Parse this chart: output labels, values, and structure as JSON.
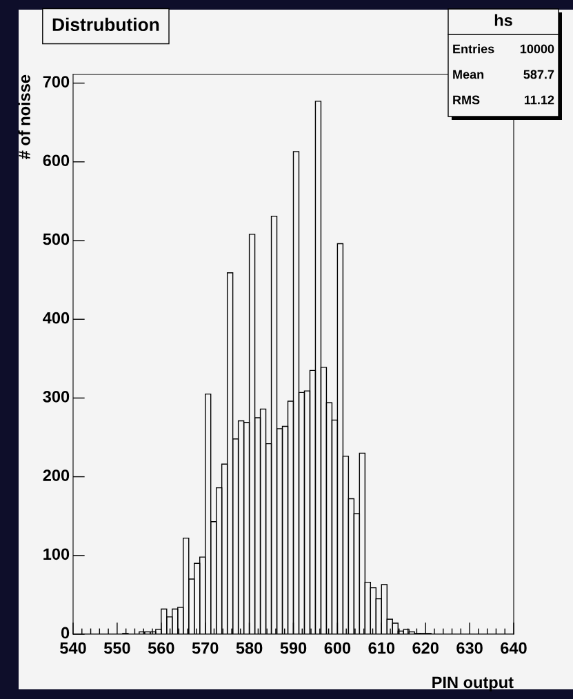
{
  "chart_data": {
    "type": "histogram",
    "title": "Distrubution",
    "xlabel": "PIN output",
    "ylabel": "# of noisse",
    "bins": [
      540,
      541.25,
      542.5,
      543.75,
      545,
      546.25,
      547.5,
      548.75,
      550,
      551.25,
      552.5,
      553.75,
      555,
      556.25,
      557.5,
      558.75,
      560,
      561.25,
      562.5,
      563.75,
      565,
      566.25,
      567.5,
      568.75,
      570,
      571.25,
      572.5,
      573.75,
      575,
      576.25,
      577.5,
      578.75,
      580,
      581.25,
      582.5,
      583.75,
      585,
      586.25,
      587.5,
      588.75,
      590,
      591.25,
      592.5,
      593.75,
      595,
      596.25,
      597.5,
      598.75,
      600,
      601.25,
      602.5,
      603.75,
      605,
      606.25,
      607.5,
      608.75,
      610,
      611.25,
      612.5,
      613.75,
      615,
      616.25,
      617.5,
      618.75,
      620,
      621.25,
      622.5,
      623.75,
      625,
      626.25,
      627.5,
      628.75,
      630,
      631.25,
      632.5,
      633.75,
      635,
      636.25,
      637.5,
      638.75,
      640
    ],
    "values": [
      0,
      0,
      0,
      0,
      0,
      0,
      0,
      0,
      0,
      1,
      0,
      0,
      3,
      3,
      3,
      6,
      32,
      22,
      32,
      34,
      122,
      70,
      90,
      98,
      305,
      143,
      186,
      216,
      459,
      248,
      271,
      269,
      508,
      275,
      286,
      242,
      531,
      261,
      264,
      296,
      613,
      307,
      309,
      335,
      677,
      339,
      294,
      272,
      496,
      226,
      172,
      153,
      230,
      66,
      59,
      45,
      63,
      19,
      14,
      4,
      6,
      3,
      1,
      1,
      1,
      0,
      0,
      0,
      0,
      0,
      0,
      0,
      0,
      0,
      0,
      0,
      0,
      0,
      0,
      0
    ],
    "color": "#000000",
    "xlim": [
      540,
      640
    ],
    "xticks": [
      540,
      550,
      560,
      570,
      580,
      590,
      600,
      610,
      620,
      630,
      640
    ],
    "ylim": [
      0,
      711
    ],
    "yticks": [
      0,
      100,
      200,
      300,
      400,
      500,
      600,
      700
    ],
    "grid": false,
    "legend": false,
    "annotations": [
      "hs",
      "Entries",
      "10000",
      "Mean",
      "587.7",
      "RMS",
      "11.12"
    ]
  }
}
